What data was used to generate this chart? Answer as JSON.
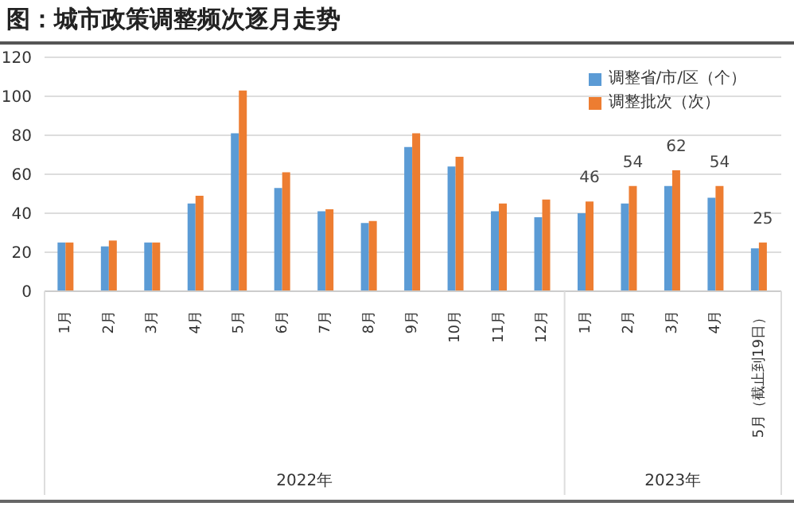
{
  "chart_data": {
    "type": "bar",
    "title": "图：城市政策调整频次逐月走势",
    "categories": [
      "1月",
      "2月",
      "3月",
      "4月",
      "5月",
      "6月",
      "7月",
      "8月",
      "9月",
      "10月",
      "11月",
      "12月",
      "1月",
      "2月",
      "3月",
      "4月",
      "5月（截止到19日）"
    ],
    "series": [
      {
        "name": "调整省/市/区（个）",
        "color": "#5b9bd5",
        "values": [
          25,
          23,
          25,
          45,
          81,
          53,
          41,
          35,
          74,
          64,
          41,
          38,
          40,
          45,
          54,
          48,
          22
        ]
      },
      {
        "name": "调整批次（次）",
        "color": "#ed7d31",
        "values": [
          25,
          26,
          25,
          49,
          103,
          61,
          42,
          36,
          81,
          69,
          45,
          47,
          46,
          54,
          62,
          54,
          25
        ],
        "value_labels": [
          null,
          null,
          null,
          null,
          null,
          null,
          null,
          null,
          null,
          null,
          null,
          null,
          "46",
          "54",
          "62",
          "54",
          "25"
        ]
      }
    ],
    "ylim": [
      0,
      120
    ],
    "yticks": [
      0,
      20,
      40,
      60,
      80,
      100,
      120
    ],
    "grid": "y",
    "legend": "top right",
    "annotations": [
      "2022年",
      "2023年"
    ]
  }
}
